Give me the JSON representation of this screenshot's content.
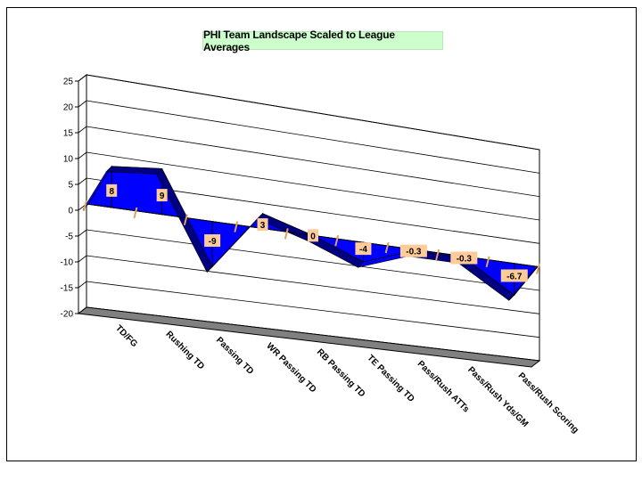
{
  "chart_data": {
    "type": "area",
    "title": "PHI Team Landscape Scaled to League Averages",
    "categories": [
      "TD/FG",
      "Rushing TD",
      "Passing TD",
      "WR Passing TD",
      "RB Passing TD",
      "TE Passing TD",
      "Pass/Rush ATTs",
      "Pass/Rush Yds/GM",
      "Pass/Rush Scoring"
    ],
    "series": [
      {
        "values": [
          8,
          9,
          -9,
          3,
          0,
          -4,
          -0.3,
          -0.3,
          -6.7
        ]
      }
    ],
    "data_labels": [
      "8",
      "9",
      "-9",
      "3",
      "0",
      "-4",
      "-0.3",
      "-0.3",
      "-6.7"
    ],
    "yticks": [
      "25",
      "20",
      "15",
      "10",
      "5",
      "0",
      "-5",
      "-10",
      "-15",
      "-20"
    ],
    "ylim": [
      -20,
      25
    ],
    "grid": true,
    "colors": {
      "fill": "#0000ff",
      "fill_dark": "#000080",
      "label_bg": "#ffcc99",
      "floor": "#808080",
      "title_bg": "#ccffcc"
    }
  }
}
